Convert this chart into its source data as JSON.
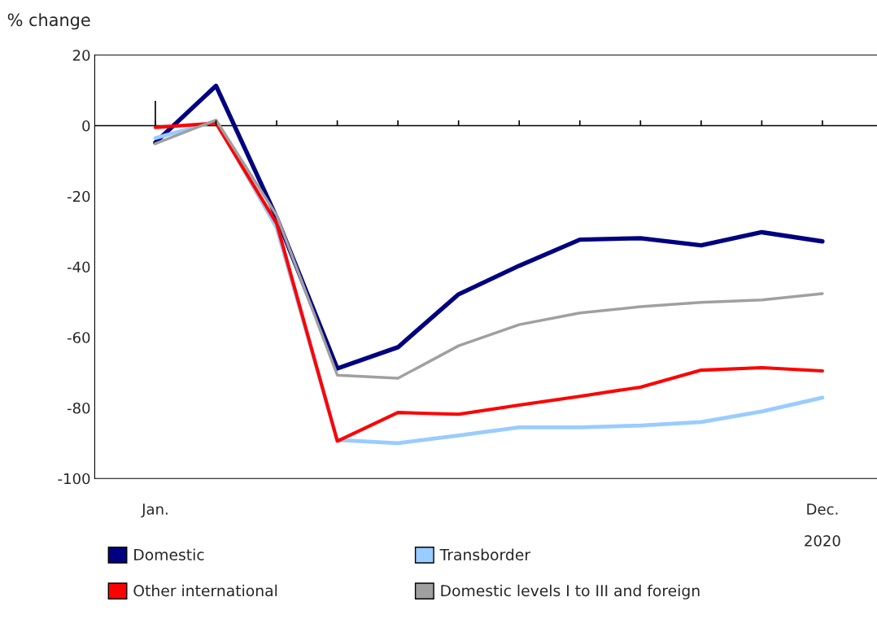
{
  "chart_data": {
    "type": "line",
    "ylabel": "% change",
    "categories": [
      "Jan.",
      null,
      null,
      null,
      null,
      null,
      null,
      null,
      null,
      null,
      null,
      "Dec."
    ],
    "series": [
      {
        "name": "Domestic",
        "color": "#000080",
        "values": [
          -4.8,
          11.3,
          -26,
          -68.8,
          -62.8,
          -47.8,
          -39.7,
          -32.3,
          -31.9,
          -33.9,
          -30.2,
          -32.8
        ]
      },
      {
        "name": "Transborder",
        "color": "#99ccff",
        "values": [
          -3.5,
          1.2,
          -28.9,
          -89.1,
          -90,
          -87.8,
          -85.5,
          -85.5,
          -85,
          -84,
          -81,
          -77.1
        ]
      },
      {
        "name": "Other international",
        "color": "#ff0000",
        "values": [
          -0.5,
          0.7,
          -27.7,
          -89.4,
          -81.3,
          -81.8,
          -79.2,
          -76.7,
          -74.1,
          -69.3,
          -68.6,
          -69.5
        ]
      },
      {
        "name": "Domestic levels I to III and foreign",
        "color": "#a0a0a0",
        "values": [
          -5.1,
          1.6,
          -25.4,
          -70.7,
          -71.6,
          -62.4,
          -56.4,
          -53.1,
          -51.3,
          -50.1,
          -49.4,
          -47.6
        ]
      }
    ],
    "ylim": [
      -100,
      20
    ],
    "yticks": [
      -100,
      -80,
      -60,
      -40,
      -20,
      0,
      20
    ],
    "ref_lines": [
      {
        "axis": "y",
        "value": 0,
        "color": "#000000"
      }
    ],
    "annotations": [
      "2020"
    ],
    "legend": "bottom",
    "grid": false
  }
}
